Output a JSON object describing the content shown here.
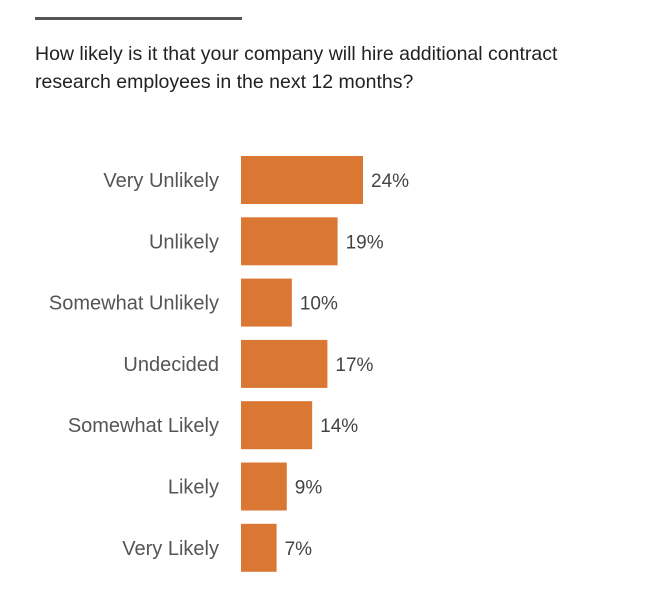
{
  "title": "How likely is it that your company will hire additional contract research employees in the next 12 months?",
  "colors": {
    "bar": "#D97733",
    "label": "#555555",
    "value": "#444444",
    "rule": "#555555"
  },
  "chart_data": {
    "type": "bar",
    "orientation": "horizontal",
    "title": "How likely is it that your company will hire additional contract research employees in the next 12 months?",
    "categories": [
      "Very Unlikely",
      "Unlikely",
      "Somewhat Unlikely",
      "Undecided",
      "Somewhat Likely",
      "Likely",
      "Very Likely"
    ],
    "values": [
      24,
      19,
      10,
      17,
      14,
      9,
      7
    ],
    "value_labels": [
      "24%",
      "19%",
      "10%",
      "17%",
      "14%",
      "9%",
      "7%"
    ],
    "unit": "%",
    "xlim": [
      0,
      24
    ],
    "grid": false,
    "legend": "none"
  }
}
